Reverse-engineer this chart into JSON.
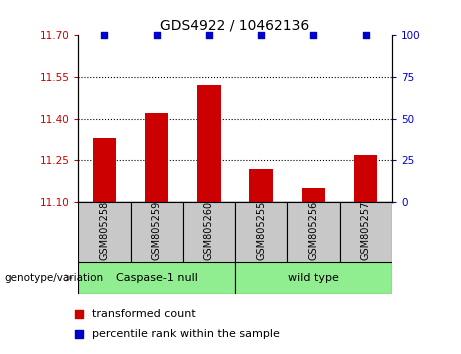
{
  "title": "GDS4922 / 10462136",
  "samples": [
    "GSM805258",
    "GSM805259",
    "GSM805260",
    "GSM805255",
    "GSM805256",
    "GSM805257"
  ],
  "bar_values": [
    11.33,
    11.42,
    11.52,
    11.22,
    11.15,
    11.27
  ],
  "percentile_values": [
    100,
    100,
    100,
    100,
    100,
    100
  ],
  "bar_color": "#cc0000",
  "dot_color": "#0000cc",
  "ylim_left": [
    11.1,
    11.7
  ],
  "ylim_right": [
    0,
    100
  ],
  "yticks_left": [
    11.1,
    11.25,
    11.4,
    11.55,
    11.7
  ],
  "yticks_right": [
    0,
    25,
    50,
    75,
    100
  ],
  "grid_values": [
    11.25,
    11.4,
    11.55
  ],
  "group1_label": "Caspase-1 null",
  "group2_label": "wild type",
  "group1_indices": [
    0,
    1,
    2
  ],
  "group2_indices": [
    3,
    4,
    5
  ],
  "group1_color": "#90ee90",
  "group2_color": "#90ee90",
  "legend_bar_label": "transformed count",
  "legend_dot_label": "percentile rank within the sample",
  "genotype_label": "genotype/variation",
  "tick_color_left": "#cc0000",
  "tick_color_right": "#0000cc",
  "bar_width": 0.45,
  "sample_bg_color": "#c8c8c8",
  "fig_width": 4.61,
  "fig_height": 3.54,
  "dpi": 100
}
